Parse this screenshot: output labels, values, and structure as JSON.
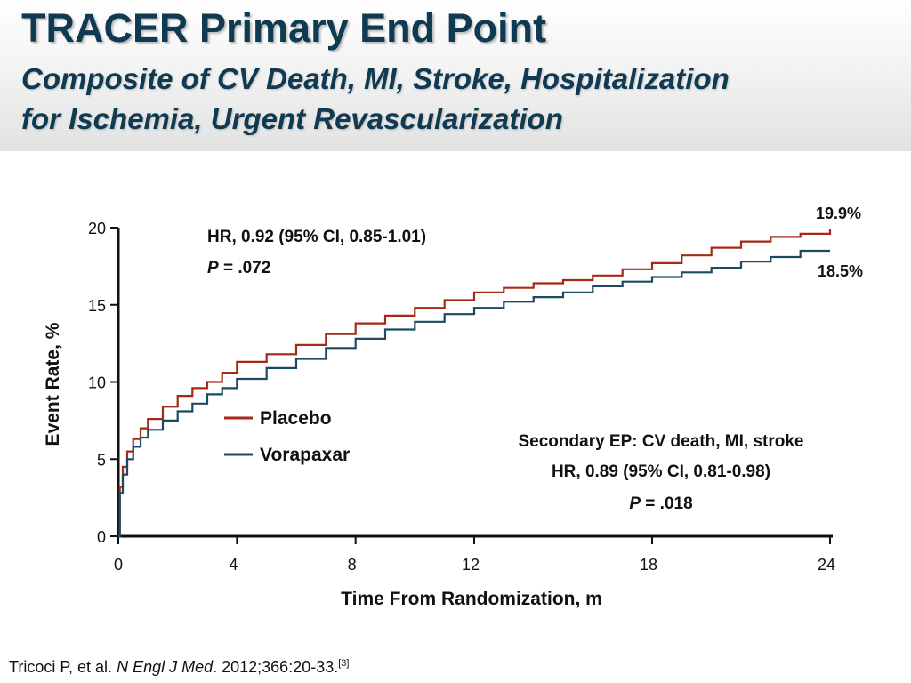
{
  "slide": {
    "title": "TRACER Primary End Point",
    "subtitle_line1": "Composite of CV Death, MI, Stroke, Hospitalization",
    "subtitle_line2": "for Ischemia, Urgent Revascularization"
  },
  "citation": {
    "authors": "Tricoci P, et al.",
    "journal": "N Engl J Med",
    "details": ". 2012;366:20-33.",
    "ref": "[3]"
  },
  "colors": {
    "placebo": "#a52a16",
    "vorapaxar": "#1c4a63",
    "title": "#0f3a52",
    "text": "#111111"
  },
  "chart_data": {
    "type": "line",
    "xlabel": "Time From Randomization, m",
    "ylabel": "Event Rate, %",
    "xlim": [
      0,
      24
    ],
    "ylim": [
      0,
      20
    ],
    "xticks": [
      0,
      4,
      8,
      12,
      18,
      24
    ],
    "yticks": [
      0,
      5,
      10,
      15,
      20
    ],
    "grid": false,
    "legend_position": "center-left",
    "series": [
      {
        "name": "Placebo",
        "color": "#a52a16",
        "end_label": "19.9%",
        "points": [
          [
            0,
            0
          ],
          [
            0.05,
            3.2
          ],
          [
            0.15,
            4.5
          ],
          [
            0.3,
            5.5
          ],
          [
            0.5,
            6.3
          ],
          [
            0.75,
            7.0
          ],
          [
            1,
            7.6
          ],
          [
            1.5,
            8.4
          ],
          [
            2,
            9.1
          ],
          [
            2.5,
            9.6
          ],
          [
            3,
            10.0
          ],
          [
            3.5,
            10.6
          ],
          [
            4,
            11.3
          ],
          [
            5,
            11.8
          ],
          [
            6,
            12.4
          ],
          [
            7,
            13.1
          ],
          [
            8,
            13.8
          ],
          [
            9,
            14.3
          ],
          [
            10,
            14.8
          ],
          [
            11,
            15.3
          ],
          [
            12,
            15.8
          ],
          [
            13,
            16.1
          ],
          [
            14,
            16.4
          ],
          [
            15,
            16.6
          ],
          [
            16,
            16.9
          ],
          [
            17,
            17.3
          ],
          [
            18,
            17.7
          ],
          [
            19,
            18.2
          ],
          [
            20,
            18.7
          ],
          [
            21,
            19.1
          ],
          [
            22,
            19.4
          ],
          [
            23,
            19.6
          ],
          [
            24,
            19.9
          ]
        ]
      },
      {
        "name": "Vorapaxar",
        "color": "#1c4a63",
        "end_label": "18.5%",
        "points": [
          [
            0,
            0
          ],
          [
            0.05,
            2.8
          ],
          [
            0.15,
            4.0
          ],
          [
            0.3,
            5.0
          ],
          [
            0.5,
            5.8
          ],
          [
            0.75,
            6.4
          ],
          [
            1,
            6.9
          ],
          [
            1.5,
            7.5
          ],
          [
            2,
            8.1
          ],
          [
            2.5,
            8.6
          ],
          [
            3,
            9.2
          ],
          [
            3.5,
            9.6
          ],
          [
            4,
            10.2
          ],
          [
            5,
            10.9
          ],
          [
            6,
            11.5
          ],
          [
            7,
            12.2
          ],
          [
            8,
            12.8
          ],
          [
            9,
            13.4
          ],
          [
            10,
            13.9
          ],
          [
            11,
            14.4
          ],
          [
            12,
            14.8
          ],
          [
            13,
            15.2
          ],
          [
            14,
            15.5
          ],
          [
            15,
            15.8
          ],
          [
            16,
            16.2
          ],
          [
            17,
            16.5
          ],
          [
            18,
            16.8
          ],
          [
            19,
            17.1
          ],
          [
            20,
            17.4
          ],
          [
            21,
            17.8
          ],
          [
            22,
            18.1
          ],
          [
            23,
            18.5
          ],
          [
            24,
            18.5
          ]
        ]
      }
    ],
    "annotations": {
      "primary_hr": "HR, 0.92 (95% CI, 0.85-1.01)",
      "primary_p_label": "P",
      "primary_p_value": " = .072",
      "secondary_title": "Secondary EP: CV death, MI, stroke",
      "secondary_hr": "HR, 0.89 (95% CI, 0.81-0.98)",
      "secondary_p_label": "P",
      "secondary_p_value": " = .018"
    }
  }
}
